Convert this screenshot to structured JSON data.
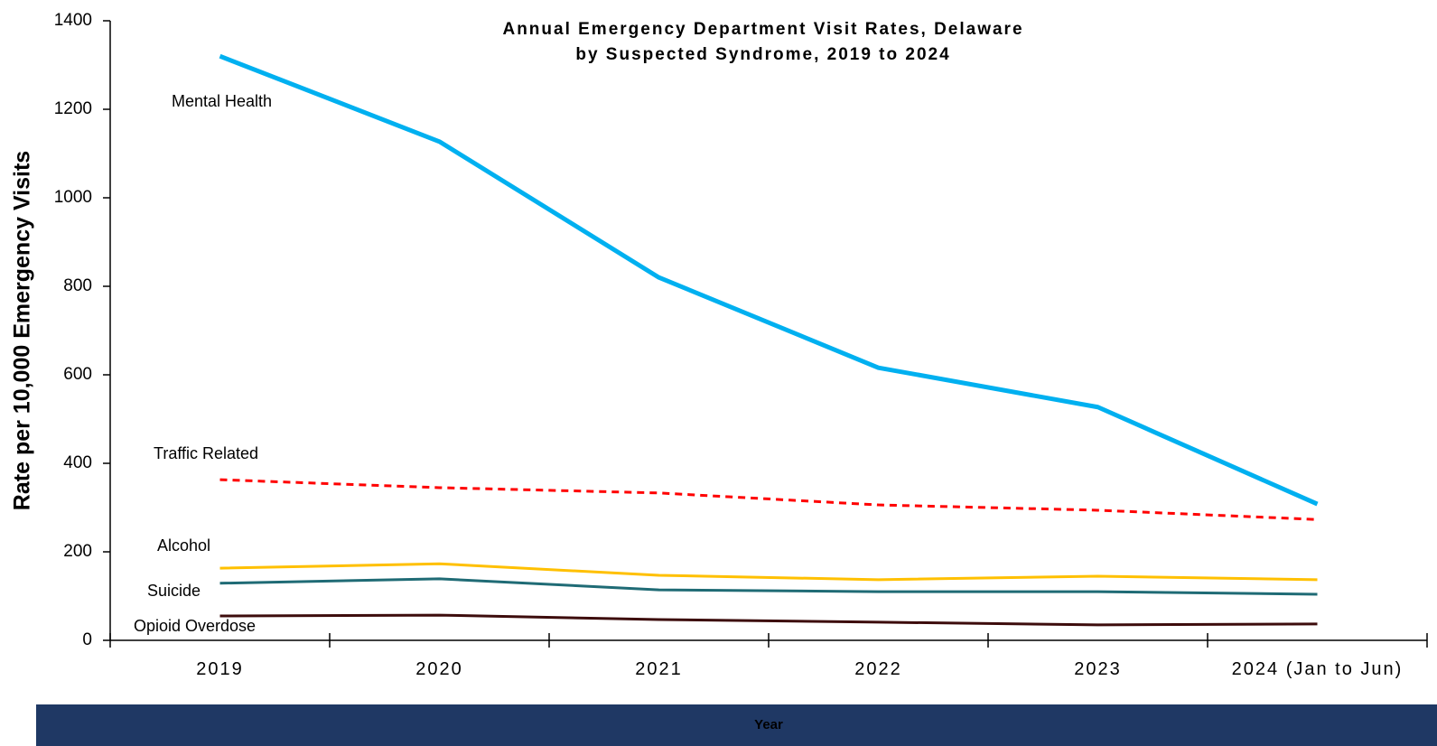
{
  "chart_data": {
    "type": "line",
    "title": "Annual Emergency Department Visit Rates, Delaware",
    "subtitle": "by Suspected Syndrome, 2019 to 2024",
    "x_label": "Year",
    "y_label": "Rate per 10,000 Emergency Visits",
    "categories": [
      "2019",
      "2020",
      "2021",
      "2022",
      "2023",
      "2024 (Jan to Jun)"
    ],
    "ylim": [
      0,
      1400
    ],
    "yticks": [
      0,
      200,
      400,
      600,
      800,
      1000,
      1200,
      1400
    ],
    "series": [
      {
        "name": "Mental Health",
        "color": "#00b0f0",
        "line_style": "solid",
        "values": [
          1320,
          1127,
          820,
          616,
          527,
          308
        ]
      },
      {
        "name": "Traffic Related",
        "color": "#ff0000",
        "line_style": "dashed",
        "values": [
          363,
          345,
          333,
          306,
          294,
          273
        ]
      },
      {
        "name": "Alcohol",
        "color": "#ffc000",
        "line_style": "solid",
        "values": [
          163,
          173,
          147,
          137,
          145,
          137
        ]
      },
      {
        "name": "Suicide",
        "color": "#1f6b75",
        "line_style": "solid",
        "values": [
          129,
          139,
          114,
          110,
          110,
          104
        ]
      },
      {
        "name": "Opioid Overdose",
        "color": "#3d0c0c",
        "line_style": "solid",
        "values": [
          55,
          57,
          47,
          41,
          35,
          37
        ]
      }
    ]
  }
}
